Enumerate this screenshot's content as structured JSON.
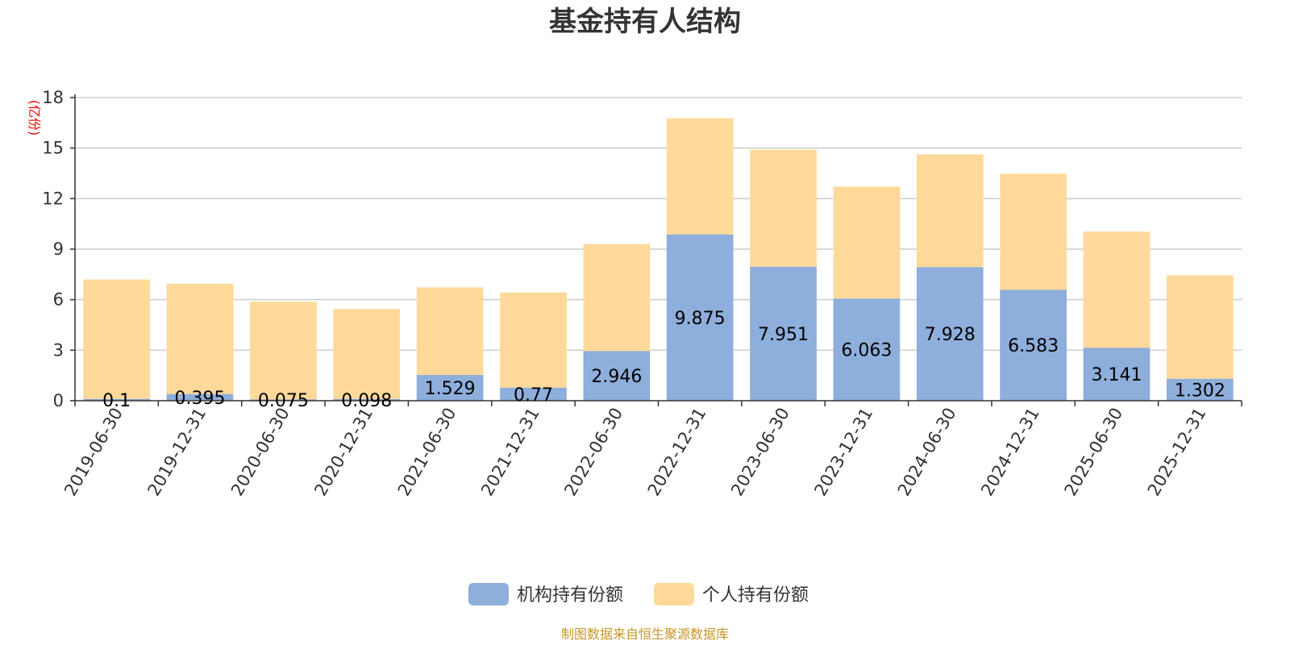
{
  "chart_data": {
    "type": "bar",
    "stacked": true,
    "title": "基金持有人结构",
    "ylabel": "(亿份)",
    "ylim": [
      0,
      18
    ],
    "yticks": [
      0,
      3,
      6,
      9,
      12,
      15,
      18
    ],
    "grid": true,
    "legend_position": "bottom-center",
    "categories": [
      "2019-06-30",
      "2019-12-31",
      "2020-06-30",
      "2020-12-31",
      "2021-06-30",
      "2021-12-31",
      "2022-06-30",
      "2022-12-31",
      "2023-06-30",
      "2023-12-31",
      "2024-06-30",
      "2024-12-31",
      "2025-06-30",
      "2025-12-31"
    ],
    "series": [
      {
        "name": "机构持有份额",
        "color": "#8eaedb",
        "values": [
          0.1,
          0.395,
          0.075,
          0.098,
          1.529,
          0.77,
          2.946,
          9.875,
          7.951,
          6.063,
          7.928,
          6.583,
          3.141,
          1.302
        ],
        "labels": [
          "0.1",
          "0.395",
          "0.075",
          "0.098",
          "1.529",
          "0.77",
          "2.946",
          "9.875",
          "7.951",
          "6.063",
          "7.928",
          "6.583",
          "3.141",
          "1.302"
        ]
      },
      {
        "name": "个人持有份额",
        "color": "#ffd999",
        "values": [
          7.1,
          6.55,
          5.8,
          5.35,
          5.2,
          5.65,
          6.35,
          6.9,
          6.95,
          6.65,
          6.7,
          6.9,
          6.9,
          6.15
        ]
      }
    ],
    "source": "制图数据来自恒生聚源数据库"
  },
  "colors": {
    "axis": "#333333",
    "grid": "#cccccc",
    "unit_label": "#ff0000",
    "source": "#c8962a"
  }
}
